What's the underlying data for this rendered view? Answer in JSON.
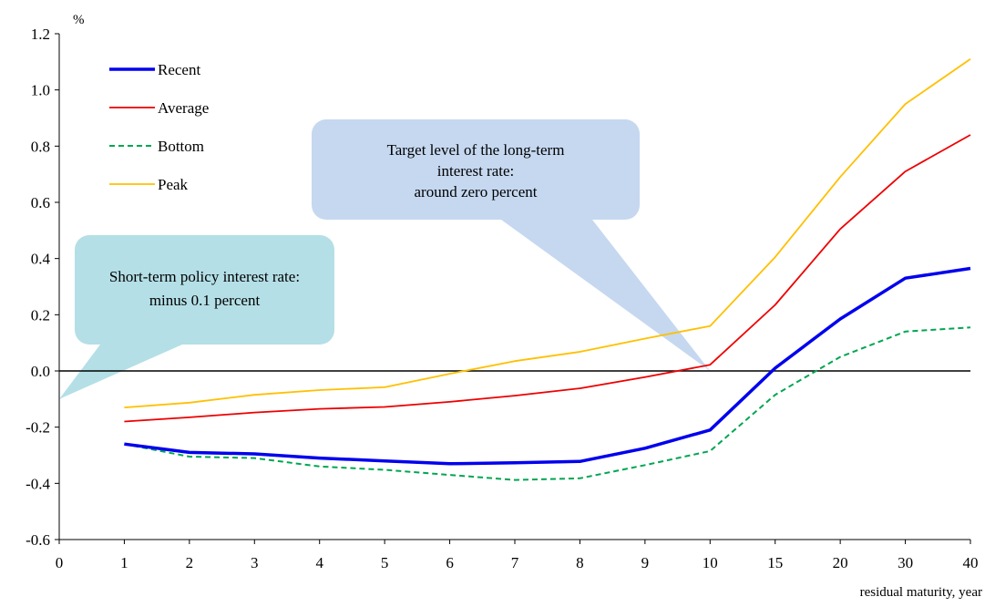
{
  "chart_data": {
    "type": "line",
    "title": "",
    "ylabel": "%",
    "xlabel": "residual maturity, year",
    "ylim": [
      -0.6,
      1.2
    ],
    "yticks": [
      "1.2",
      "1.0",
      "0.8",
      "0.6",
      "0.4",
      "0.2",
      "0.0",
      "-0.2",
      "-0.4",
      "-0.6"
    ],
    "yticks_values": [
      1.2,
      1.0,
      0.8,
      0.6,
      0.4,
      0.2,
      0.0,
      -0.2,
      -0.4,
      -0.6
    ],
    "categories": [
      "0",
      "1",
      "2",
      "3",
      "4",
      "5",
      "6",
      "7",
      "8",
      "9",
      "10",
      "15",
      "20",
      "30",
      "40"
    ],
    "grid": false,
    "legend_position": "top-left",
    "series": [
      {
        "name": "Recent",
        "color": "#0000ee",
        "style": "solid-thick",
        "values": [
          null,
          -0.26,
          -0.29,
          -0.295,
          -0.31,
          -0.32,
          -0.33,
          -0.327,
          -0.322,
          -0.275,
          -0.21,
          0.01,
          0.185,
          0.33,
          0.365
        ]
      },
      {
        "name": "Average",
        "color": "#ee0000",
        "style": "solid",
        "values": [
          null,
          -0.18,
          -0.165,
          -0.148,
          -0.135,
          -0.128,
          -0.11,
          -0.088,
          -0.062,
          -0.022,
          0.022,
          0.235,
          0.505,
          0.71,
          0.84
        ]
      },
      {
        "name": "Bottom",
        "color": "#00a651",
        "style": "dashed",
        "values": [
          null,
          -0.26,
          -0.305,
          -0.31,
          -0.34,
          -0.352,
          -0.37,
          -0.388,
          -0.382,
          -0.335,
          -0.285,
          -0.085,
          0.05,
          0.14,
          0.155
        ]
      },
      {
        "name": "Peak",
        "color": "#ffc000",
        "style": "solid",
        "values": [
          null,
          -0.13,
          -0.113,
          -0.085,
          -0.068,
          -0.058,
          -0.01,
          0.035,
          0.068,
          0.115,
          0.16,
          0.405,
          0.69,
          0.95,
          1.11
        ]
      }
    ],
    "annotations": [
      {
        "lines": [
          "Short-term policy interest rate:",
          "minus 0.1 percent"
        ],
        "color": "#b4dfe6",
        "points_to": {
          "category_index": 0,
          "value": -0.1
        }
      },
      {
        "lines": [
          "Target level of the long-term",
          "interest rate:",
          "around zero percent"
        ],
        "color": "#c5d8f0",
        "points_to": {
          "category_index": 10,
          "value": 0.0
        }
      }
    ]
  }
}
